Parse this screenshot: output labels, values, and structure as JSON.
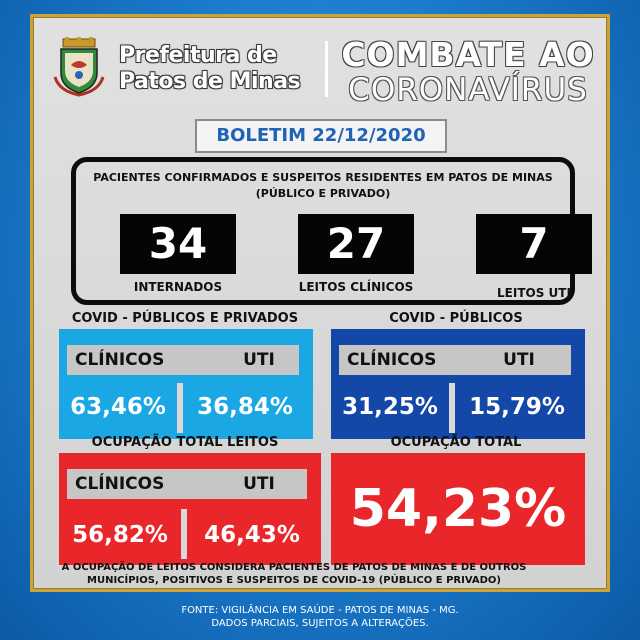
{
  "header": {
    "prefeitura_line1": "Prefeitura de",
    "prefeitura_line2": "Patos de Minas",
    "combate": "COMBATE AO",
    "coronavirus": "CORONAVÍRUS",
    "boletim": "BOLETIM 22/12/2020"
  },
  "residents": {
    "title_line1": "PACIENTES CONFIRMADOS E SUSPEITOS RESIDENTES EM PATOS DE MINAS",
    "title_line2": "(PÚBLICO E PRIVADO)",
    "items": [
      {
        "value": "34",
        "label": "INTERNADOS"
      },
      {
        "value": "27",
        "label": "LEITOS CLÍNICOS"
      },
      {
        "value": "7",
        "label": "LEITOS UTI"
      }
    ]
  },
  "covid_publicos_privados": {
    "title": "COVID - PÚBLICOS E PRIVADOS",
    "clinicos_label": "CLÍNICOS",
    "uti_label": "UTI",
    "clinicos_value": "63,46%",
    "uti_value": "36,84%",
    "color": "#1aa7e3"
  },
  "covid_publicos": {
    "title": "COVID - PÚBLICOS",
    "clinicos_label": "CLÍNICOS",
    "uti_label": "UTI",
    "clinicos_value": "31,25%",
    "uti_value": "15,79%",
    "color": "#1347a8"
  },
  "ocupacao_total_leitos": {
    "title": "OCUPAÇÃO TOTAL LEITOS",
    "clinicos_label": "CLÍNICOS",
    "uti_label": "UTI",
    "clinicos_value": "56,82%",
    "uti_value": "46,43%",
    "color": "#e9272b"
  },
  "ocupacao_total": {
    "title": "OCUPAÇÃO TOTAL",
    "value": "54,23%",
    "color": "#e9272b"
  },
  "note_line1": "A OCUPAÇÃO DE LEITOS CONSIDERA PACIENTES DE PATOS DE MINAS E DE OUTROS",
  "note_line2": "MUNICÍPIOS, POSITIVOS E SUSPEITOS DE COVID-19 (PÚBLICO E PRIVADO)",
  "fonte_line1": "FONTE: VIGILÂNCIA EM SAÚDE - PATOS DE MINAS - MG.",
  "fonte_line2": "DADOS PARCIAIS, SUJEITOS A ALTERAÇÕES.",
  "crest_icon": "coat-of-arms-icon"
}
